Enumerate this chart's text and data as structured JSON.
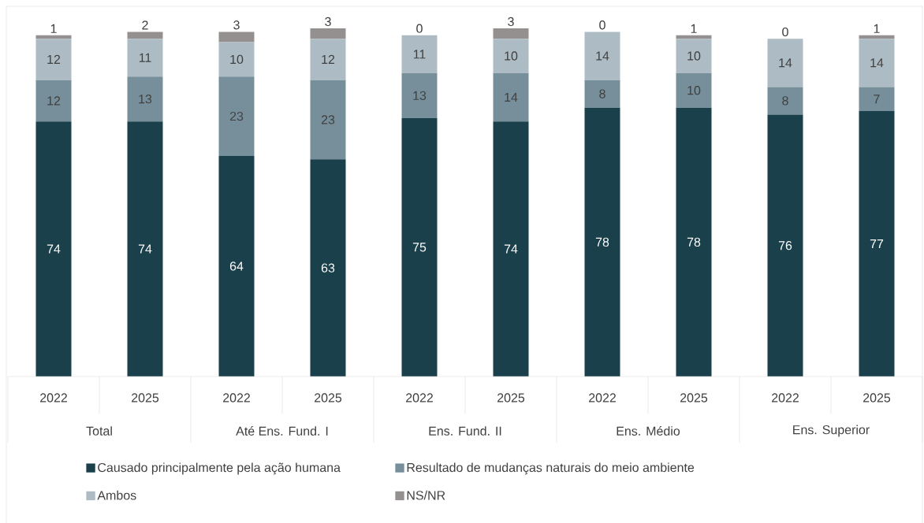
{
  "chart_data": {
    "type": "bar",
    "stacked": true,
    "data_labels": true,
    "legend": "bottom",
    "categories": [
      "2022",
      "2025",
      "2022",
      "2025",
      "2022",
      "2025",
      "2022",
      "2025",
      "2022",
      "2025"
    ],
    "annotations": [
      "Total",
      "Até Ens. Fund. I",
      "Ens. Fund. II",
      "Ens. Médio",
      "Ens. Superior"
    ],
    "series": [
      {
        "name": "Causado principalmente pela ação humana",
        "color": "#1a404c",
        "values": [
          74,
          74,
          64,
          63,
          75,
          74,
          78,
          78,
          76,
          77
        ]
      },
      {
        "name": "Resultado de mudanças naturais do meio ambiente",
        "color": "#778f9a",
        "values": [
          12,
          13,
          23,
          23,
          13,
          14,
          8,
          10,
          8,
          7
        ]
      },
      {
        "name": "Ambos",
        "color": "#adbcc4",
        "values": [
          12,
          11,
          10,
          12,
          11,
          10,
          14,
          10,
          14,
          14
        ]
      },
      {
        "name": "NS/NR",
        "color": "#959090",
        "values": [
          1,
          2,
          3,
          3,
          0,
          3,
          0,
          1,
          0,
          1
        ]
      }
    ]
  }
}
